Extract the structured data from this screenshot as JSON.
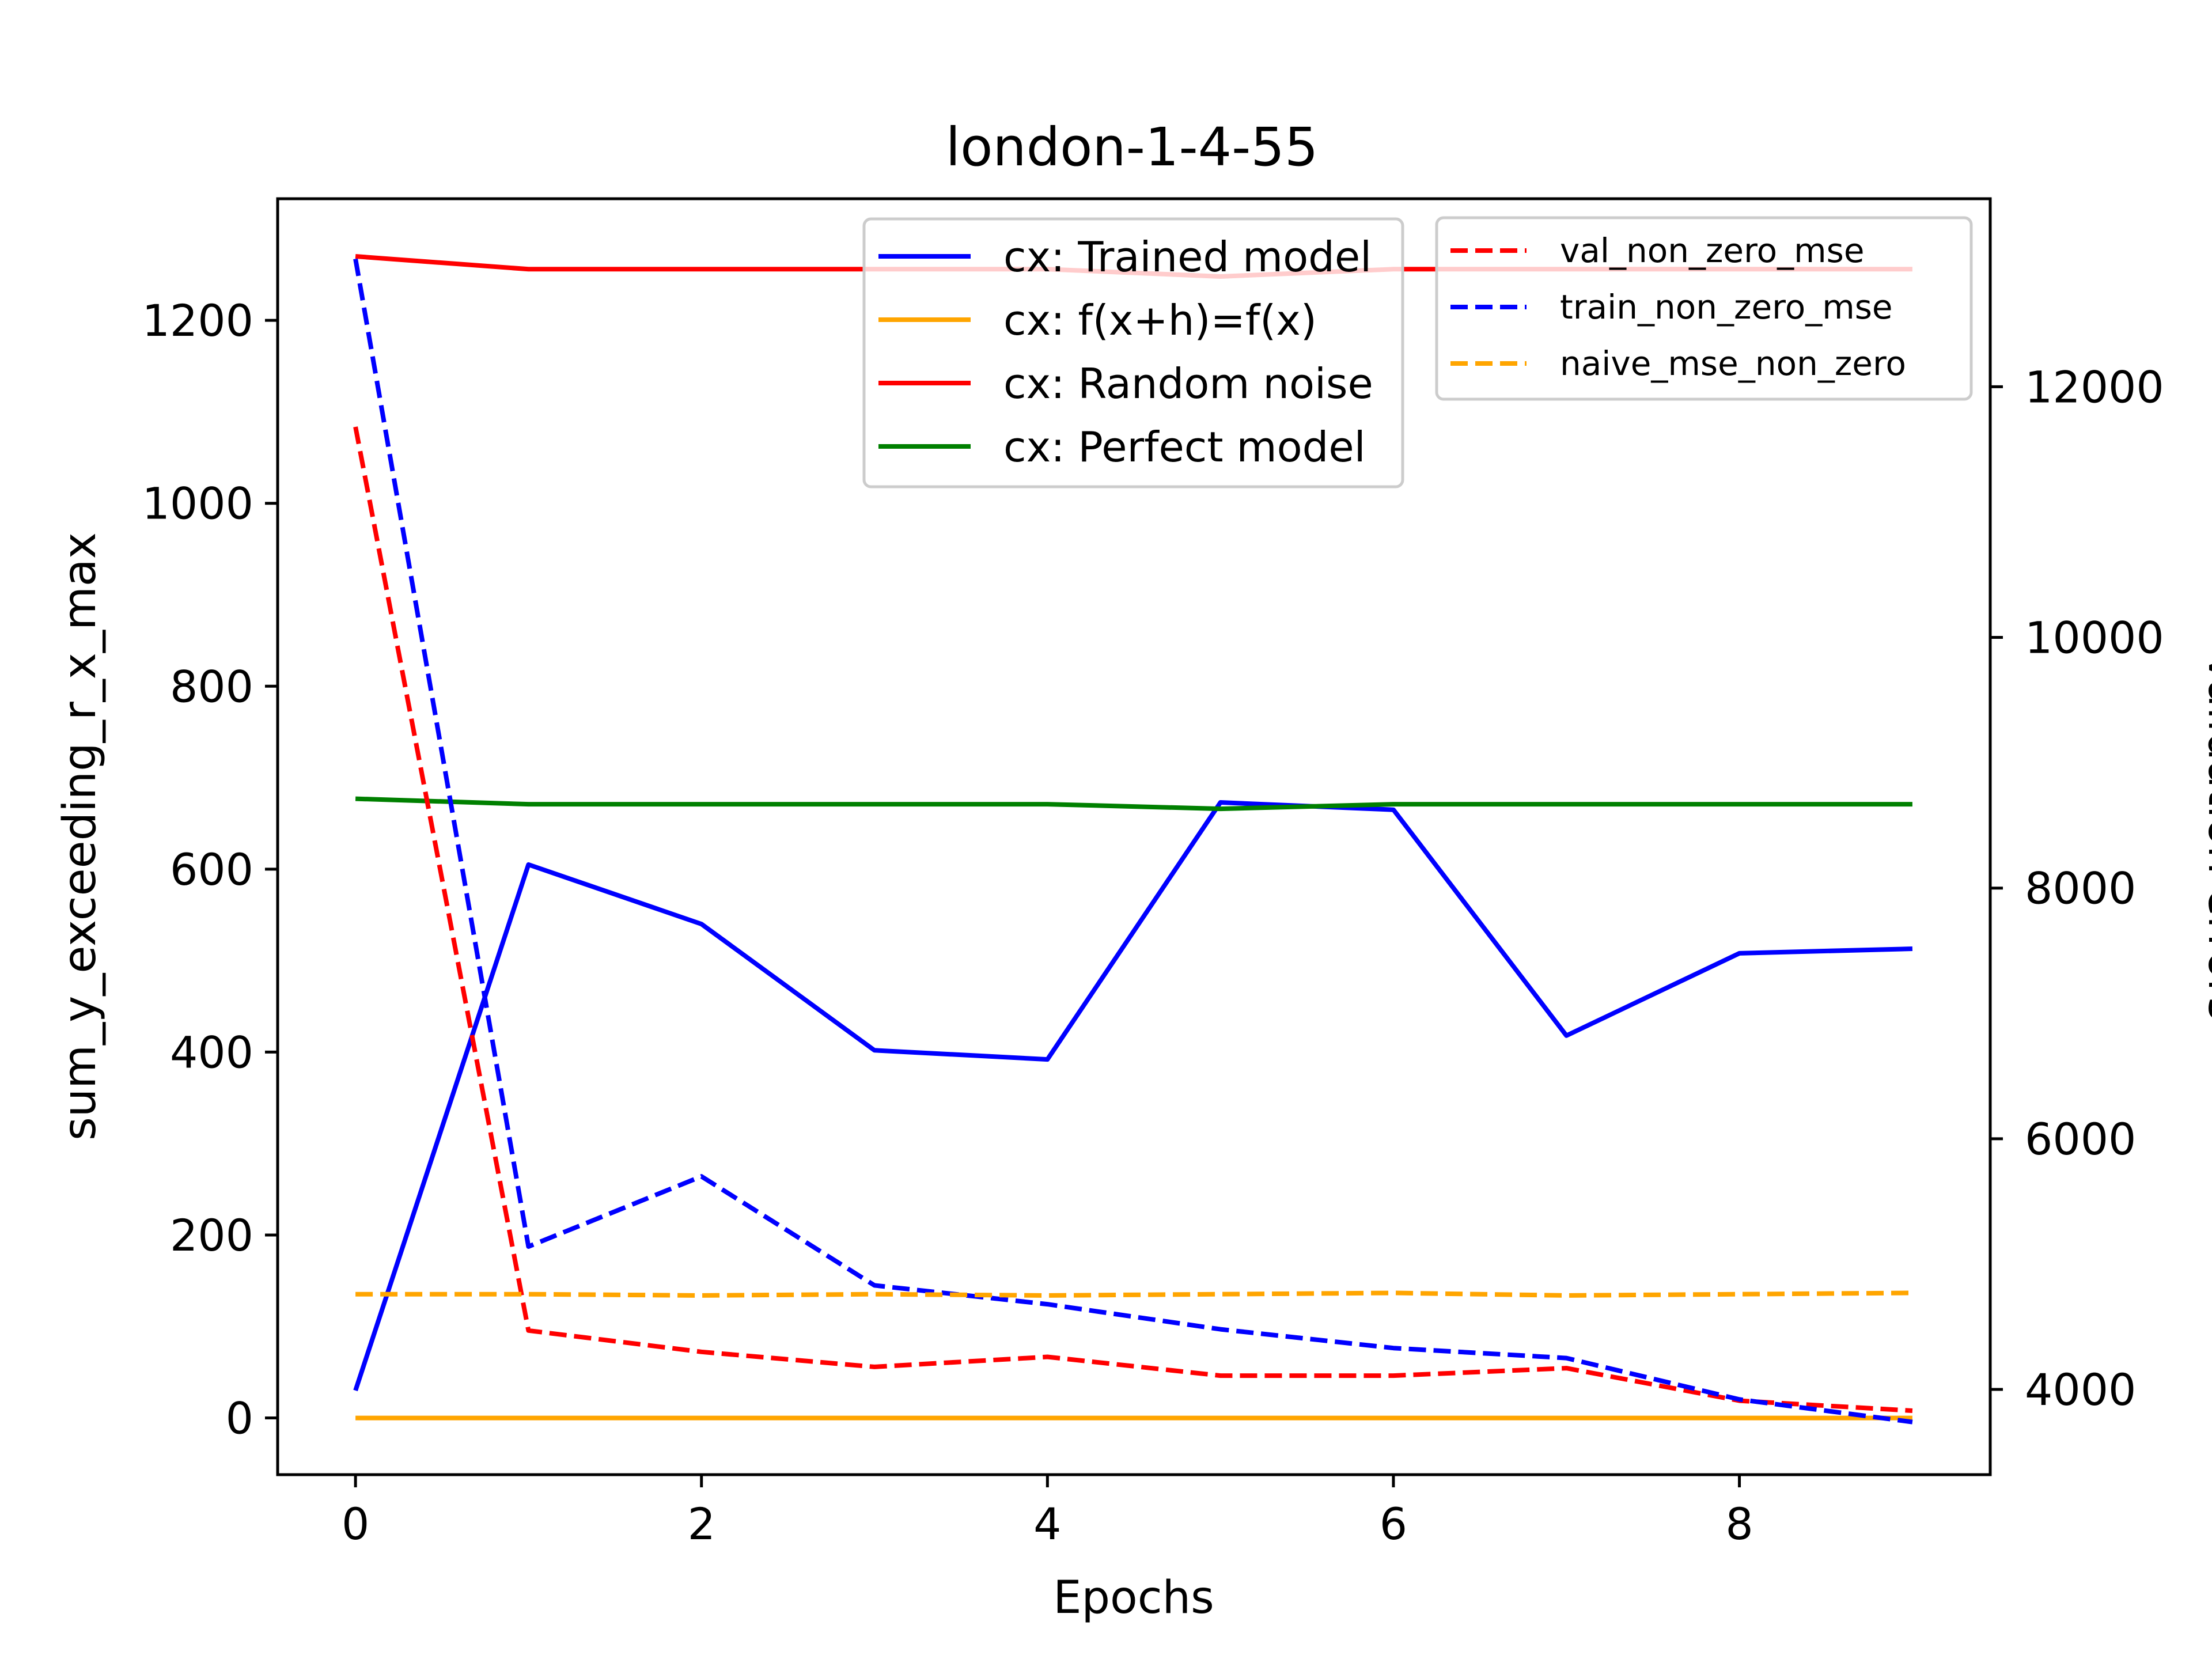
{
  "chart_data": {
    "type": "line",
    "title": "london-1-4-55",
    "xlabel": "Epochs",
    "ylabel_left": "sum_y_exceeding_r_x_max",
    "ylabel_right": "Validation errors",
    "x": [
      0,
      1,
      2,
      3,
      4,
      5,
      6,
      7,
      8,
      9
    ],
    "xticks": [
      "0",
      "2",
      "4",
      "6",
      "8"
    ],
    "xlim": [
      -0.45,
      9.45
    ],
    "ylim_left": [
      -62,
      1333
    ],
    "yticks_left": [
      "0",
      "200",
      "400",
      "600",
      "800",
      "1000",
      "1200"
    ],
    "ylim_right": [
      3320,
      13500
    ],
    "yticks_right": [
      "4000",
      "6000",
      "8000",
      "10000",
      "12000"
    ],
    "grid": false,
    "left_series": [
      {
        "name": "cx: Trained model",
        "color": "#0000ff",
        "style": "solid",
        "values": [
          30,
          605,
          540,
          402,
          392,
          673,
          665,
          418,
          508,
          513
        ]
      },
      {
        "name": "cx: f(x+h)=f(x)",
        "color": "#ffa500",
        "style": "solid",
        "values": [
          0,
          0,
          0,
          0,
          0,
          0,
          0,
          0,
          0,
          0
        ]
      },
      {
        "name": "cx: Random noise",
        "color": "#ff0000",
        "style": "solid",
        "values": [
          1270,
          1256,
          1256,
          1256,
          1256,
          1248,
          1256,
          1256,
          1256,
          1256
        ]
      },
      {
        "name": "cx: Perfect model",
        "color": "#008000",
        "style": "solid",
        "values": [
          677,
          671,
          671,
          671,
          671,
          666,
          671,
          671,
          671,
          671
        ]
      }
    ],
    "right_series": [
      {
        "name": "val_non_zero_mse",
        "color": "#ff0000",
        "style": "dashed",
        "values": [
          11680,
          4470,
          4300,
          4180,
          4260,
          4110,
          4110,
          4170,
          3910,
          3830
        ]
      },
      {
        "name": "train_non_zero_mse",
        "color": "#0000ff",
        "style": "dashed",
        "values": [
          13020,
          5140,
          5700,
          4830,
          4680,
          4480,
          4330,
          4250,
          3920,
          3740
        ]
      },
      {
        "name": "naive_mse_non_zero",
        "color": "#ffa500",
        "style": "dashed",
        "values": [
          4760,
          4760,
          4750,
          4760,
          4750,
          4760,
          4770,
          4750,
          4760,
          4770
        ]
      }
    ],
    "legend_left_placement": "top-center",
    "legend_right_placement": "top-right"
  }
}
